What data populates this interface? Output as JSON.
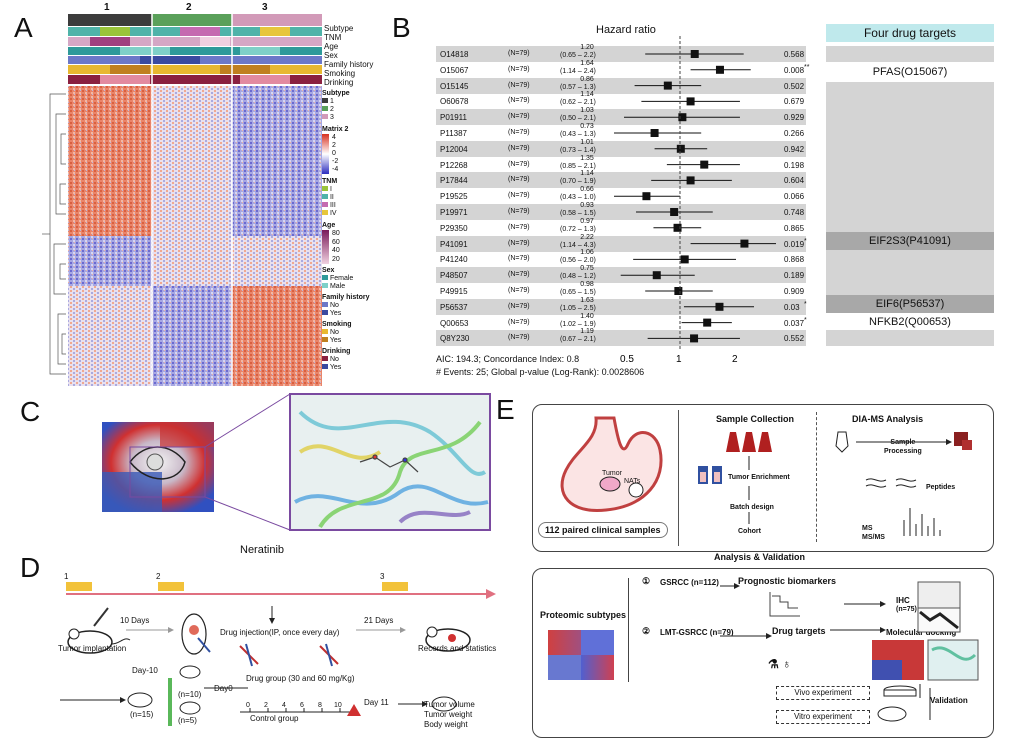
{
  "panels": {
    "a": "A",
    "b": "B",
    "c": "C",
    "d": "D",
    "e": "E"
  },
  "panel_a": {
    "cluster_labels": [
      "1",
      "2",
      "3"
    ],
    "track_labels": [
      "Subtype",
      "TNM",
      "Age",
      "Sex",
      "Family history",
      "Smoking",
      "Drinking"
    ],
    "legend": {
      "subtype_title": "Subtype",
      "subtype_items": [
        "1",
        "2",
        "3"
      ],
      "matrix_title": "Matrix 2",
      "matrix_ticks": [
        "4",
        "2",
        "0",
        "-2",
        "-4"
      ],
      "tnm_title": "TNM",
      "tnm_items": [
        "I",
        "II",
        "III",
        "IV"
      ],
      "age_title": "Age",
      "age_ticks": [
        "80",
        "60",
        "40",
        "20"
      ],
      "sex_title": "Sex",
      "sex_items": [
        "Female",
        "Male"
      ],
      "family_title": "Family history",
      "family_items": [
        "No",
        "Yes"
      ],
      "smoking_title": "Smoking",
      "smoking_items": [
        "No",
        "Yes"
      ],
      "drinking_title": "Drinking",
      "drinking_items": [
        "No",
        "Yes"
      ]
    }
  },
  "chart_data": {
    "type": "forest",
    "title": "Hazard ratio",
    "xlabel": "",
    "x_ticks": [
      "0.5",
      "1",
      "2"
    ],
    "x_scale": "log",
    "reference_line": 1,
    "rows": [
      {
        "id": "O14818",
        "n": "(N=79)",
        "hr": 1.2,
        "ci": "(0.65 – 2.2)",
        "lo": 0.65,
        "hi": 2.2,
        "p": "0.568",
        "sig": ""
      },
      {
        "id": "O15067",
        "n": "(N=79)",
        "hr": 1.64,
        "ci": "(1.14 – 2.4)",
        "lo": 1.14,
        "hi": 2.4,
        "p": "0.008",
        "sig": "**"
      },
      {
        "id": "O15145",
        "n": "(N=79)",
        "hr": 0.86,
        "ci": "(0.57 – 1.3)",
        "lo": 0.57,
        "hi": 1.3,
        "p": "0.502",
        "sig": ""
      },
      {
        "id": "O60678",
        "n": "(N=79)",
        "hr": 1.14,
        "ci": "(0.62 – 2.1)",
        "lo": 0.62,
        "hi": 2.1,
        "p": "0.679",
        "sig": ""
      },
      {
        "id": "P01911",
        "n": "(N=79)",
        "hr": 1.03,
        "ci": "(0.50 – 2.1)",
        "lo": 0.5,
        "hi": 2.1,
        "p": "0.929",
        "sig": ""
      },
      {
        "id": "P11387",
        "n": "(N=79)",
        "hr": 0.73,
        "ci": "(0.43 – 1.3)",
        "lo": 0.43,
        "hi": 1.3,
        "p": "0.266",
        "sig": ""
      },
      {
        "id": "P12004",
        "n": "(N=79)",
        "hr": 1.01,
        "ci": "(0.73 – 1.4)",
        "lo": 0.73,
        "hi": 1.4,
        "p": "0.942",
        "sig": ""
      },
      {
        "id": "P12268",
        "n": "(N=79)",
        "hr": 1.35,
        "ci": "(0.85 – 2.1)",
        "lo": 0.85,
        "hi": 2.1,
        "p": "0.198",
        "sig": ""
      },
      {
        "id": "P17844",
        "n": "(N=79)",
        "hr": 1.14,
        "ci": "(0.70 – 1.9)",
        "lo": 0.7,
        "hi": 1.9,
        "p": "0.604",
        "sig": ""
      },
      {
        "id": "P19525",
        "n": "(N=79)",
        "hr": 0.66,
        "ci": "(0.43 – 1.0)",
        "lo": 0.43,
        "hi": 1.0,
        "p": "0.066",
        "sig": ""
      },
      {
        "id": "P19971",
        "n": "(N=79)",
        "hr": 0.93,
        "ci": "(0.58 – 1.5)",
        "lo": 0.58,
        "hi": 1.5,
        "p": "0.748",
        "sig": ""
      },
      {
        "id": "P29350",
        "n": "(N=79)",
        "hr": 0.97,
        "ci": "(0.72 – 1.3)",
        "lo": 0.72,
        "hi": 1.3,
        "p": "0.865",
        "sig": ""
      },
      {
        "id": "P41091",
        "n": "(N=79)",
        "hr": 2.22,
        "ci": "(1.14 – 4.3)",
        "lo": 1.14,
        "hi": 4.3,
        "p": "0.019",
        "sig": "*"
      },
      {
        "id": "P41240",
        "n": "(N=79)",
        "hr": 1.06,
        "ci": "(0.56 – 2.0)",
        "lo": 0.56,
        "hi": 2.0,
        "p": "0.868",
        "sig": ""
      },
      {
        "id": "P48507",
        "n": "(N=79)",
        "hr": 0.75,
        "ci": "(0.48 – 1.2)",
        "lo": 0.48,
        "hi": 1.2,
        "p": "0.189",
        "sig": ""
      },
      {
        "id": "P49915",
        "n": "(N=79)",
        "hr": 0.98,
        "ci": "(0.65 – 1.5)",
        "lo": 0.65,
        "hi": 1.5,
        "p": "0.909",
        "sig": ""
      },
      {
        "id": "P56537",
        "n": "(N=79)",
        "hr": 1.63,
        "ci": "(1.05 – 2.5)",
        "lo": 1.05,
        "hi": 2.5,
        "p": "0.03",
        "sig": "*"
      },
      {
        "id": "Q00653",
        "n": "(N=79)",
        "hr": 1.4,
        "ci": "(1.02 – 1.9)",
        "lo": 1.02,
        "hi": 1.9,
        "p": "0.037",
        "sig": "*"
      },
      {
        "id": "Q8Y230",
        "n": "(N=79)",
        "hr": 1.19,
        "ci": "(0.67 – 2.1)",
        "lo": 0.67,
        "hi": 2.1,
        "p": "0.552",
        "sig": ""
      }
    ],
    "footer_line1": "AIC: 194.3; Concordance Index: 0.8",
    "footer_line2": "# Events: 25; Global p-value (Log-Rank): 0.0028606"
  },
  "panel_b_drugs": {
    "header": "Four drug targets",
    "pfas": "PFAS(O15067)",
    "eif2s3": "EIF2S3(P41091)",
    "eif6": "EIF6(P56537)",
    "nfkb2": "NFKB2(Q00653)"
  },
  "panel_c": {
    "drug_name": "Neratinib"
  },
  "panel_d": {
    "marker_1": "1",
    "marker_2": "2",
    "marker_3": "3",
    "ten_days": "10 Days",
    "twentyone_days": "21 Days",
    "tumor_implantation": "Tumor implantation",
    "drug_injection": "Drug injection(IP, once every day)",
    "records": "Records and statistics",
    "day_minus10": "Day-10",
    "n15": "(n=15)",
    "n10": "(n=10)",
    "n5": "(n=5)",
    "day0": "Day0",
    "drug_group": "Drug group (30 and 60 mg/Kg)",
    "timeline_ticks": [
      "0",
      "2",
      "4",
      "6",
      "8",
      "10"
    ],
    "control_group": "Control group",
    "day11": "Day 11",
    "outcomes": [
      "Tumor volume",
      "Tumor weight",
      "Body weight"
    ]
  },
  "panel_e": {
    "tumor": "Tumor",
    "nats": "NATs",
    "samples": "112 paired clinical samples",
    "sample_collection": "Sample Collection",
    "tumor_enrichment": "Tumor Enrichment",
    "batch_design": "Batch design",
    "cohort": "Cohort",
    "dia_ms": "DIA-MS Analysis",
    "sample_processing_1": "Sample",
    "sample_processing_2": "Processing",
    "peptides": "Peptides",
    "ms": "MS",
    "msms": "MS/MS",
    "analysis_validation": "Analysis & Validation",
    "proteomic_subtypes": "Proteomic subtypes",
    "circle1": "①",
    "gsrcc": "GSRCC (n=112)",
    "prognostic": "Prognostic biomarkers",
    "ihc": "IHC",
    "ihc_n": "(n=75)",
    "circle2": "②",
    "lmt": "LMT-GSRCC (n=79)",
    "drug_targets": "Drug targets",
    "molecular_docking": "Molecular docking",
    "vivo": "Vivo experiment",
    "vitro": "Vitro experiment",
    "validation": "Validation"
  }
}
